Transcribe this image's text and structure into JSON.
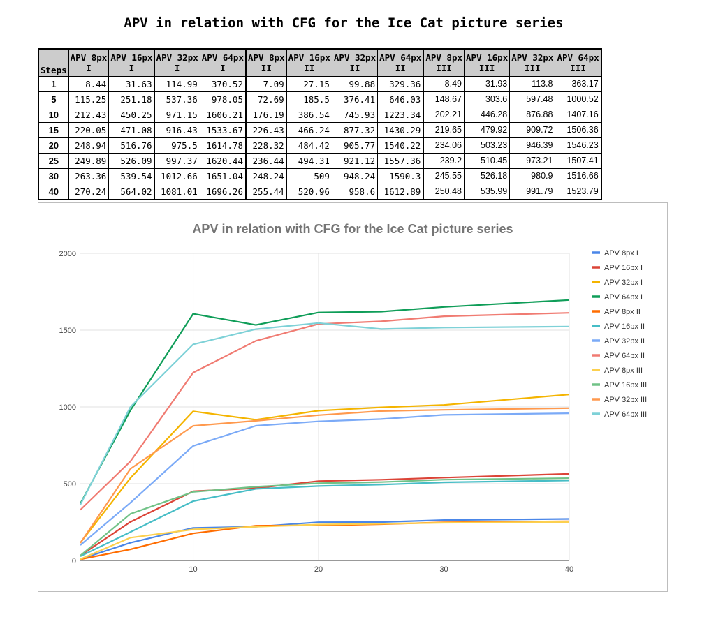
{
  "title": "APV in relation with CFG for the Ice Cat picture series",
  "table": {
    "corner_label": "Steps",
    "headers": [
      [
        "APV 8px",
        "I"
      ],
      [
        "APV 16px",
        "I"
      ],
      [
        "APV 32px",
        "I"
      ],
      [
        "APV 64px",
        "I"
      ],
      [
        "APV 8px",
        "II"
      ],
      [
        "APV 16px",
        "II"
      ],
      [
        "APV 32px",
        "II"
      ],
      [
        "APV 64px",
        "II"
      ],
      [
        "APV 8px",
        "III"
      ],
      [
        "APV 16px",
        "III"
      ],
      [
        "APV 32px",
        "III"
      ],
      [
        "APV 64px",
        "III"
      ]
    ],
    "rows": [
      {
        "step": "1",
        "cells": [
          "8.44",
          "31.63",
          "114.99",
          "370.52",
          "7.09",
          "27.15",
          "99.88",
          "329.36",
          "8.49",
          "31.93",
          "113.8",
          "363.17"
        ]
      },
      {
        "step": "5",
        "cells": [
          "115.25",
          "251.18",
          "537.36",
          "978.05",
          "72.69",
          "185.5",
          "376.41",
          "646.03",
          "148.67",
          "303.6",
          "597.48",
          "1000.52"
        ]
      },
      {
        "step": "10",
        "cells": [
          "212.43",
          "450.25",
          "971.15",
          "1606.21",
          "176.19",
          "386.54",
          "745.93",
          "1223.34",
          "202.21",
          "446.28",
          "876.88",
          "1407.16"
        ]
      },
      {
        "step": "15",
        "cells": [
          "220.05",
          "471.08",
          "916.43",
          "1533.67",
          "226.43",
          "466.24",
          "877.32",
          "1430.29",
          "219.65",
          "479.92",
          "909.72",
          "1506.36"
        ]
      },
      {
        "step": "20",
        "cells": [
          "248.94",
          "516.76",
          "975.5",
          "1614.78",
          "228.32",
          "484.42",
          "905.77",
          "1540.22",
          "234.06",
          "503.23",
          "946.39",
          "1546.23"
        ]
      },
      {
        "step": "25",
        "cells": [
          "249.89",
          "526.09",
          "997.37",
          "1620.44",
          "236.44",
          "494.31",
          "921.12",
          "1557.36",
          "239.2",
          "510.45",
          "973.21",
          "1507.41"
        ]
      },
      {
        "step": "30",
        "cells": [
          "263.36",
          "539.54",
          "1012.66",
          "1651.04",
          "248.24",
          "509",
          "948.24",
          "1590.3",
          "245.55",
          "526.18",
          "980.9",
          "1516.66"
        ]
      },
      {
        "step": "40",
        "cells": [
          "270.24",
          "564.02",
          "1081.01",
          "1696.26",
          "255.44",
          "520.96",
          "958.6",
          "1612.89",
          "250.48",
          "535.99",
          "991.79",
          "1523.79"
        ]
      }
    ]
  },
  "chart_data": {
    "type": "line",
    "title": "APV in relation with CFG for the Ice Cat picture series",
    "xlabel": "",
    "ylabel": "",
    "x": [
      1,
      5,
      10,
      15,
      20,
      25,
      30,
      40
    ],
    "xlim": [
      1,
      40
    ],
    "ylim": [
      0,
      2000
    ],
    "xticks": [
      10,
      20,
      30,
      40
    ],
    "yticks": [
      0,
      500,
      1000,
      1500,
      2000
    ],
    "grid": "vertical",
    "legend": "right",
    "series": [
      {
        "name": "APV 8px I",
        "color": "#4a86e8",
        "values": [
          8.44,
          115.25,
          212.43,
          220.05,
          248.94,
          249.89,
          263.36,
          270.24
        ]
      },
      {
        "name": "APV 16px I",
        "color": "#db4437",
        "values": [
          31.63,
          251.18,
          450.25,
          471.08,
          516.76,
          526.09,
          539.54,
          564.02
        ]
      },
      {
        "name": "APV 32px I",
        "color": "#f4b400",
        "values": [
          114.99,
          537.36,
          971.15,
          916.43,
          975.5,
          997.37,
          1012.66,
          1081.01
        ]
      },
      {
        "name": "APV 64px I",
        "color": "#0f9d58",
        "values": [
          370.52,
          978.05,
          1606.21,
          1533.67,
          1614.78,
          1620.44,
          1651.04,
          1696.26
        ]
      },
      {
        "name": "APV 8px II",
        "color": "#ff6d01",
        "values": [
          7.09,
          72.69,
          176.19,
          226.43,
          228.32,
          236.44,
          248.24,
          255.44
        ]
      },
      {
        "name": "APV 16px II",
        "color": "#46bdc6",
        "values": [
          27.15,
          185.5,
          386.54,
          466.24,
          484.42,
          494.31,
          509,
          520.96
        ]
      },
      {
        "name": "APV 32px II",
        "color": "#7baaf7",
        "values": [
          99.88,
          376.41,
          745.93,
          877.32,
          905.77,
          921.12,
          948.24,
          958.6
        ]
      },
      {
        "name": "APV 64px II",
        "color": "#f07b72",
        "values": [
          329.36,
          646.03,
          1223.34,
          1430.29,
          1540.22,
          1557.36,
          1590.3,
          1612.89
        ]
      },
      {
        "name": "APV 8px III",
        "color": "#fcd04f",
        "values": [
          8.49,
          148.67,
          202.21,
          219.65,
          234.06,
          239.2,
          245.55,
          250.48
        ]
      },
      {
        "name": "APV 16px III",
        "color": "#71c287",
        "values": [
          31.93,
          303.6,
          446.28,
          479.92,
          503.23,
          510.45,
          526.18,
          535.99
        ]
      },
      {
        "name": "APV 32px III",
        "color": "#ff994d",
        "values": [
          113.8,
          597.48,
          876.88,
          909.72,
          946.39,
          973.21,
          980.9,
          991.79
        ]
      },
      {
        "name": "APV 64px III",
        "color": "#7ed1d7",
        "values": [
          363.17,
          1000.52,
          1407.16,
          1506.36,
          1546.23,
          1507.41,
          1516.66,
          1523.79
        ]
      }
    ]
  }
}
